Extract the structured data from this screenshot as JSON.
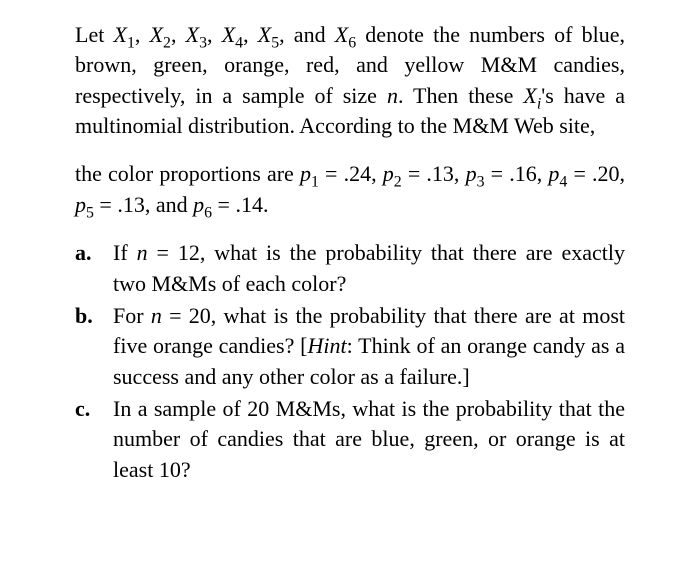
{
  "text_color": "#000000",
  "background_color": "#ffffff",
  "font_family": "Times New Roman",
  "base_fontsize": 22,
  "intro": {
    "part1_pre": "Let ",
    "vars": [
      "X",
      "X",
      "X",
      "X",
      "X",
      "X"
    ],
    "subs": [
      "1",
      "2",
      "3",
      "4",
      "5",
      "6"
    ],
    "part1_post": " denote the numbers of blue, brown, green, orange, red, and yellow M&M candies, respectively, in a sample of size ",
    "n": "n",
    "part2": ". Then these ",
    "xi_var": "X",
    "xi_sub": "i",
    "xi_post": "'s have a multinomial distribution. According to the M&M Web site,"
  },
  "proportions": {
    "pre": "the color proportions are ",
    "p": "p",
    "eq": " = ",
    "values": [
      ".24",
      ".13",
      ".16",
      ".20",
      ".13",
      ".14"
    ],
    "subs": [
      "1",
      "2",
      "3",
      "4",
      "5",
      "6"
    ],
    "and": ", and ",
    "period": "."
  },
  "items": {
    "a": {
      "label": "a.",
      "pre": "If ",
      "n": "n",
      "eq": " = 12, what is the probability that there are exactly two M&Ms of each color?"
    },
    "b": {
      "label": "b.",
      "pre": "For ",
      "n": "n",
      "eq": " = 20, what is the probability that there are at most five orange candies? [",
      "hint": "Hint",
      "post": ": Think of an orange candy as a success and any other color as a failure.]"
    },
    "c": {
      "label": "c.",
      "text": "In a sample of 20 M&Ms, what is the probability that the number of candies that are blue, green, or orange is at least 10?"
    }
  }
}
